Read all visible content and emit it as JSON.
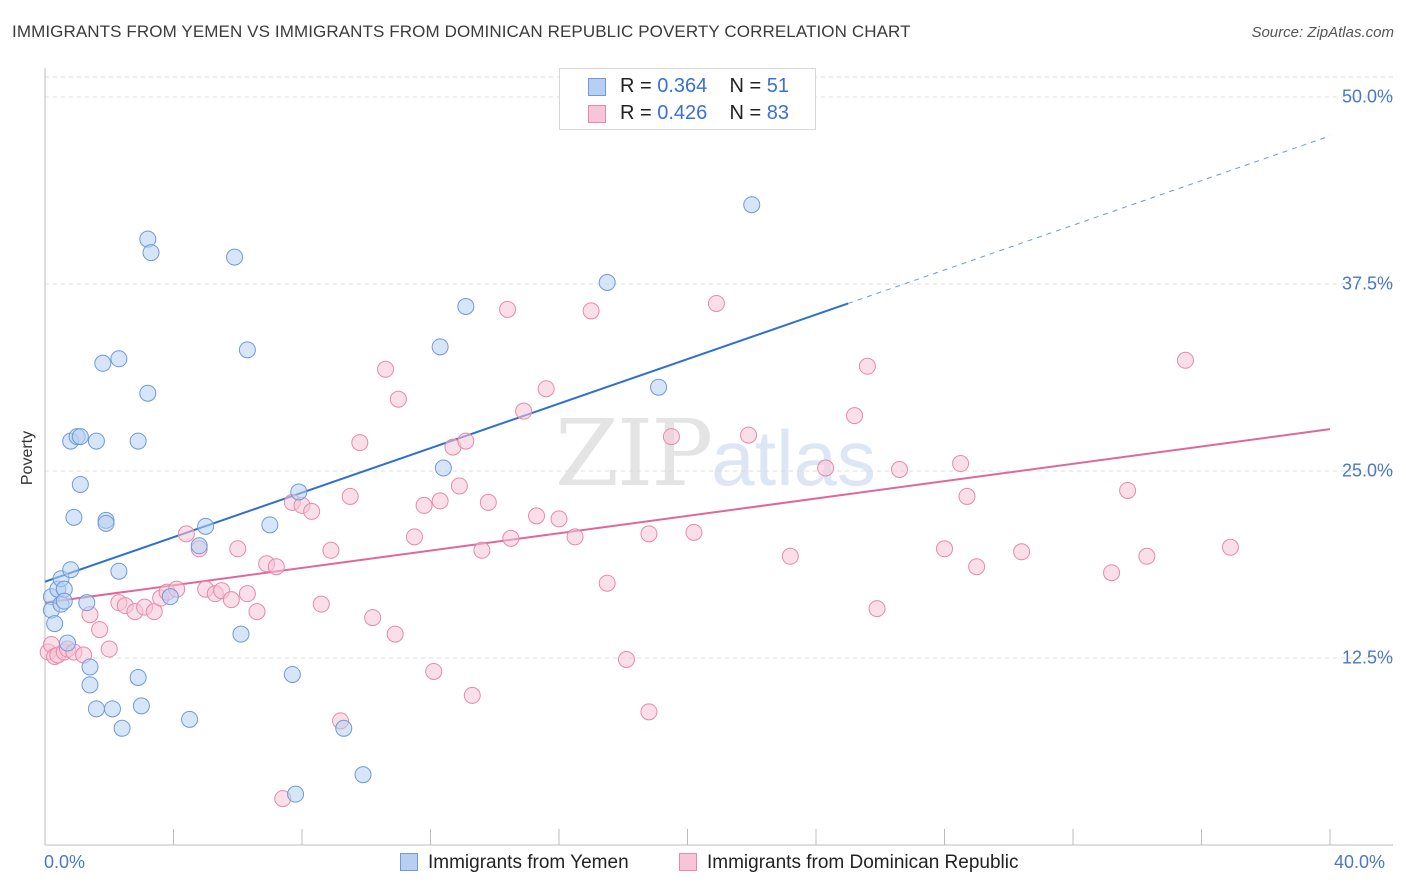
{
  "title": "IMMIGRANTS FROM YEMEN VS IMMIGRANTS FROM DOMINICAN REPUBLIC POVERTY CORRELATION CHART",
  "source": "Source: ZipAtlas.com",
  "watermark": {
    "zip": "ZIP",
    "atlas": "atlas"
  },
  "legend_top": [
    {
      "r_label": "R = ",
      "r_value": "0.364",
      "n_label": "N = ",
      "n_value": "51"
    },
    {
      "r_label": "R = ",
      "r_value": "0.426",
      "n_label": "N = ",
      "n_value": "83"
    }
  ],
  "colors": {
    "yemen_fill": "#b7d0f2",
    "yemen_stroke": "#6f9ad8",
    "yemen_line": "#2f6fd0",
    "dr_fill": "#f8c5d6",
    "dr_stroke": "#e889a9",
    "dr_line": "#e0679a",
    "tick_label": "#4a78c6",
    "grid": "#dcdcdc"
  },
  "chart_data": {
    "type": "scatter",
    "title": "IMMIGRANTS FROM YEMEN VS IMMIGRANTS FROM DOMINICAN REPUBLIC POVERTY CORRELATION CHART",
    "xlabel": "",
    "ylabel": "Poverty",
    "xlim": [
      0,
      40
    ],
    "ylim": [
      0,
      50
    ],
    "x_tick_labels": [
      "0.0%",
      "40.0%"
    ],
    "y_ticks": [
      12.5,
      25.0,
      37.5,
      50.0
    ],
    "y_tick_labels": [
      "12.5%",
      "25.0%",
      "37.5%",
      "50.0%"
    ],
    "grid": "horizontal dashed",
    "legend_position": "bottom",
    "series": [
      {
        "name": "Immigrants from Yemen",
        "R": 0.364,
        "N": 51,
        "trend": {
          "x": [
            0,
            25
          ],
          "y": [
            17.6,
            36.2
          ],
          "extended_to": [
            40,
            47.4
          ]
        },
        "points": [
          [
            0.2,
            16.6
          ],
          [
            0.2,
            15.7
          ],
          [
            0.3,
            14.8
          ],
          [
            0.4,
            17.1
          ],
          [
            0.5,
            16.1
          ],
          [
            0.5,
            17.8
          ],
          [
            0.6,
            17.1
          ],
          [
            0.6,
            16.3
          ],
          [
            0.7,
            13.5
          ],
          [
            0.8,
            18.4
          ],
          [
            0.9,
            21.9
          ],
          [
            0.8,
            27.0
          ],
          [
            1.0,
            27.3
          ],
          [
            1.1,
            27.3
          ],
          [
            1.1,
            24.1
          ],
          [
            1.3,
            16.2
          ],
          [
            1.4,
            11.9
          ],
          [
            1.4,
            10.7
          ],
          [
            1.6,
            27.0
          ],
          [
            1.6,
            9.1
          ],
          [
            1.8,
            32.2
          ],
          [
            1.9,
            21.7
          ],
          [
            1.9,
            21.5
          ],
          [
            2.1,
            9.1
          ],
          [
            2.3,
            32.5
          ],
          [
            2.3,
            18.3
          ],
          [
            2.4,
            7.8
          ],
          [
            2.9,
            27.0
          ],
          [
            2.9,
            11.2
          ],
          [
            3.0,
            9.3
          ],
          [
            3.2,
            30.2
          ],
          [
            3.2,
            40.5
          ],
          [
            3.3,
            39.6
          ],
          [
            3.9,
            16.6
          ],
          [
            4.5,
            8.4
          ],
          [
            4.8,
            20.0
          ],
          [
            5.0,
            21.3
          ],
          [
            5.9,
            39.3
          ],
          [
            6.1,
            14.1
          ],
          [
            6.3,
            33.1
          ],
          [
            7.0,
            21.4
          ],
          [
            7.7,
            11.4
          ],
          [
            7.8,
            3.4
          ],
          [
            7.9,
            23.6
          ],
          [
            9.3,
            7.8
          ],
          [
            9.9,
            4.7
          ],
          [
            12.3,
            33.3
          ],
          [
            12.4,
            25.2
          ],
          [
            13.1,
            36.0
          ],
          [
            17.5,
            37.6
          ],
          [
            19.1,
            30.6
          ],
          [
            22.0,
            42.8
          ]
        ]
      },
      {
        "name": "Immigrants from Dominican Republic",
        "R": 0.426,
        "N": 83,
        "trend": {
          "x": [
            0,
            40
          ],
          "y": [
            16.2,
            27.8
          ]
        },
        "points": [
          [
            0.1,
            12.9
          ],
          [
            0.2,
            13.4
          ],
          [
            0.3,
            12.6
          ],
          [
            0.4,
            12.7
          ],
          [
            0.6,
            12.9
          ],
          [
            0.7,
            13.1
          ],
          [
            0.9,
            12.9
          ],
          [
            1.2,
            12.7
          ],
          [
            1.4,
            15.4
          ],
          [
            1.7,
            14.4
          ],
          [
            2.0,
            13.1
          ],
          [
            2.3,
            16.2
          ],
          [
            2.5,
            16.0
          ],
          [
            2.8,
            15.6
          ],
          [
            3.1,
            15.9
          ],
          [
            3.4,
            15.6
          ],
          [
            3.6,
            16.5
          ],
          [
            3.8,
            16.9
          ],
          [
            4.1,
            17.1
          ],
          [
            4.4,
            20.8
          ],
          [
            4.8,
            19.8
          ],
          [
            5.0,
            17.1
          ],
          [
            5.3,
            16.8
          ],
          [
            5.5,
            17.0
          ],
          [
            5.8,
            16.4
          ],
          [
            6.0,
            19.8
          ],
          [
            6.3,
            16.8
          ],
          [
            6.6,
            15.6
          ],
          [
            6.9,
            18.8
          ],
          [
            7.2,
            18.6
          ],
          [
            7.4,
            3.1
          ],
          [
            7.7,
            22.9
          ],
          [
            8.0,
            22.7
          ],
          [
            8.3,
            22.3
          ],
          [
            8.6,
            16.1
          ],
          [
            8.9,
            19.7
          ],
          [
            9.2,
            8.3
          ],
          [
            9.5,
            23.3
          ],
          [
            9.8,
            26.9
          ],
          [
            10.2,
            15.2
          ],
          [
            10.6,
            31.8
          ],
          [
            10.9,
            14.1
          ],
          [
            11.0,
            29.8
          ],
          [
            11.5,
            20.6
          ],
          [
            11.8,
            22.7
          ],
          [
            12.1,
            11.6
          ],
          [
            12.3,
            23.0
          ],
          [
            12.7,
            26.6
          ],
          [
            12.9,
            24.0
          ],
          [
            13.1,
            27.0
          ],
          [
            13.3,
            10.0
          ],
          [
            13.6,
            19.7
          ],
          [
            13.8,
            22.9
          ],
          [
            14.5,
            20.5
          ],
          [
            14.4,
            35.8
          ],
          [
            14.9,
            29.0
          ],
          [
            15.3,
            22.0
          ],
          [
            15.6,
            30.5
          ],
          [
            16.0,
            21.8
          ],
          [
            16.5,
            20.6
          ],
          [
            17.0,
            35.7
          ],
          [
            17.5,
            17.5
          ],
          [
            18.1,
            12.4
          ],
          [
            18.8,
            20.8
          ],
          [
            18.8,
            8.9
          ],
          [
            19.5,
            27.3
          ],
          [
            20.2,
            20.9
          ],
          [
            20.9,
            36.2
          ],
          [
            21.9,
            27.4
          ],
          [
            23.2,
            19.3
          ],
          [
            24.3,
            25.2
          ],
          [
            25.2,
            28.7
          ],
          [
            25.6,
            32.0
          ],
          [
            25.9,
            15.8
          ],
          [
            26.6,
            25.1
          ],
          [
            28.0,
            19.8
          ],
          [
            28.5,
            25.5
          ],
          [
            28.7,
            23.3
          ],
          [
            29.0,
            18.6
          ],
          [
            30.4,
            19.6
          ],
          [
            33.2,
            18.2
          ],
          [
            33.7,
            23.7
          ],
          [
            34.3,
            19.3
          ],
          [
            35.5,
            32.4
          ],
          [
            36.9,
            19.9
          ]
        ]
      }
    ]
  }
}
